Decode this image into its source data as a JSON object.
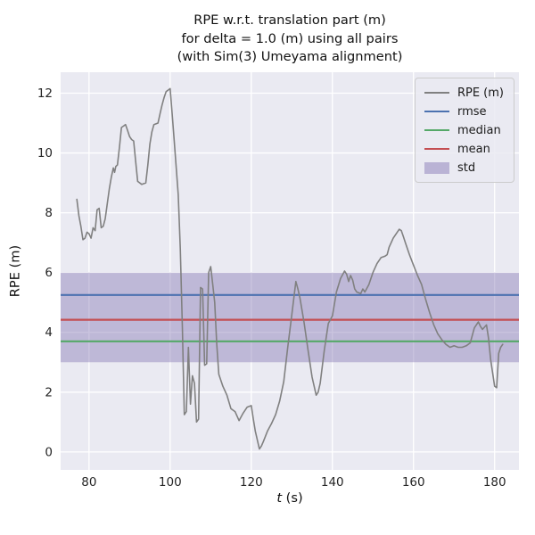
{
  "title": {
    "line1": "RPE w.r.t. translation part (m)",
    "line2": "for delta = 1.0 (m) using all pairs",
    "line3": "(with Sim(3) Umeyama alignment)"
  },
  "axes": {
    "xlabel_var": "t",
    "xlabel_rest": " (s)",
    "ylabel": "RPE (m)"
  },
  "colors": {
    "figure_bg": "#ffffff",
    "axes_bg": "#eaeaf2",
    "grid": "#ffffff",
    "text": "#262626"
  },
  "chart_data": {
    "type": "line",
    "title": "RPE w.r.t. translation part (m) for delta = 1.0 (m) using all pairs (with Sim(3) Umeyama alignment)",
    "xlabel": "t (s)",
    "ylabel": "RPE (m)",
    "xlim": [
      73,
      186
    ],
    "ylim": [
      -0.6,
      12.7
    ],
    "xticks": [
      80,
      100,
      120,
      140,
      160,
      180
    ],
    "yticks": [
      0,
      2,
      4,
      6,
      8,
      10,
      12
    ],
    "grid": true,
    "legend_position": "upper right",
    "series": [
      {
        "name": "RPE (m)",
        "color": "#808080",
        "points": [
          [
            77,
            8.45
          ],
          [
            77.5,
            7.9
          ],
          [
            78,
            7.55
          ],
          [
            78.5,
            7.1
          ],
          [
            79,
            7.15
          ],
          [
            79.5,
            7.35
          ],
          [
            80,
            7.3
          ],
          [
            80.5,
            7.15
          ],
          [
            81,
            7.5
          ],
          [
            81.5,
            7.4
          ],
          [
            82,
            8.1
          ],
          [
            82.5,
            8.15
          ],
          [
            83,
            7.5
          ],
          [
            83.5,
            7.55
          ],
          [
            84,
            7.8
          ],
          [
            84.5,
            8.3
          ],
          [
            85,
            8.8
          ],
          [
            85.5,
            9.2
          ],
          [
            86,
            9.5
          ],
          [
            86.3,
            9.35
          ],
          [
            86.6,
            9.55
          ],
          [
            87,
            9.6
          ],
          [
            87.5,
            10.2
          ],
          [
            88,
            10.85
          ],
          [
            88.5,
            10.9
          ],
          [
            89,
            10.95
          ],
          [
            89.5,
            10.75
          ],
          [
            90,
            10.55
          ],
          [
            90.5,
            10.45
          ],
          [
            91,
            10.4
          ],
          [
            91.5,
            9.7
          ],
          [
            92,
            9.05
          ],
          [
            93,
            8.95
          ],
          [
            94,
            9.0
          ],
          [
            94.5,
            9.6
          ],
          [
            95,
            10.3
          ],
          [
            95.5,
            10.7
          ],
          [
            96,
            10.95
          ],
          [
            97,
            11.0
          ],
          [
            97.5,
            11.3
          ],
          [
            98,
            11.6
          ],
          [
            98.5,
            11.85
          ],
          [
            99,
            12.05
          ],
          [
            99.5,
            12.1
          ],
          [
            100,
            12.15
          ],
          [
            100.5,
            11.3
          ],
          [
            101,
            10.4
          ],
          [
            102,
            8.6
          ],
          [
            102.5,
            6.8
          ],
          [
            103,
            4.2
          ],
          [
            103.5,
            1.25
          ],
          [
            104,
            1.35
          ],
          [
            104.5,
            3.5
          ],
          [
            105,
            1.6
          ],
          [
            105.5,
            2.55
          ],
          [
            106,
            2.3
          ],
          [
            106.5,
            1.0
          ],
          [
            107,
            1.1
          ],
          [
            107.5,
            5.5
          ],
          [
            108,
            5.45
          ],
          [
            108.5,
            2.9
          ],
          [
            109,
            2.95
          ],
          [
            109.5,
            6.0
          ],
          [
            110,
            6.2
          ],
          [
            110.5,
            5.6
          ],
          [
            111,
            5.0
          ],
          [
            111.5,
            3.6
          ],
          [
            112,
            2.6
          ],
          [
            113,
            2.2
          ],
          [
            114,
            1.9
          ],
          [
            115,
            1.45
          ],
          [
            116,
            1.35
          ],
          [
            117,
            1.05
          ],
          [
            118,
            1.3
          ],
          [
            119,
            1.5
          ],
          [
            120,
            1.55
          ],
          [
            120.5,
            1.1
          ],
          [
            121,
            0.7
          ],
          [
            122,
            0.1
          ],
          [
            122.5,
            0.2
          ],
          [
            123,
            0.35
          ],
          [
            124,
            0.7
          ],
          [
            125,
            0.95
          ],
          [
            126,
            1.25
          ],
          [
            127,
            1.7
          ],
          [
            128,
            2.35
          ],
          [
            129,
            3.5
          ],
          [
            130,
            4.6
          ],
          [
            131,
            5.7
          ],
          [
            131.5,
            5.45
          ],
          [
            132,
            5.15
          ],
          [
            133,
            4.35
          ],
          [
            134,
            3.4
          ],
          [
            135,
            2.5
          ],
          [
            136,
            1.9
          ],
          [
            136.5,
            2.0
          ],
          [
            137,
            2.3
          ],
          [
            138,
            3.4
          ],
          [
            139,
            4.3
          ],
          [
            140,
            4.55
          ],
          [
            141,
            5.35
          ],
          [
            142,
            5.8
          ],
          [
            143,
            6.05
          ],
          [
            143.5,
            5.95
          ],
          [
            144,
            5.7
          ],
          [
            144.5,
            5.9
          ],
          [
            145,
            5.75
          ],
          [
            145.5,
            5.45
          ],
          [
            146,
            5.35
          ],
          [
            147,
            5.3
          ],
          [
            147.5,
            5.45
          ],
          [
            148,
            5.35
          ],
          [
            149,
            5.6
          ],
          [
            150,
            6.0
          ],
          [
            151,
            6.3
          ],
          [
            152,
            6.5
          ],
          [
            153,
            6.55
          ],
          [
            153.5,
            6.6
          ],
          [
            154,
            6.85
          ],
          [
            155,
            7.15
          ],
          [
            156,
            7.35
          ],
          [
            156.5,
            7.45
          ],
          [
            157,
            7.4
          ],
          [
            157.5,
            7.2
          ],
          [
            158,
            7.0
          ],
          [
            159,
            6.6
          ],
          [
            160,
            6.25
          ],
          [
            161,
            5.9
          ],
          [
            162,
            5.6
          ],
          [
            163,
            5.1
          ],
          [
            164,
            4.65
          ],
          [
            165,
            4.25
          ],
          [
            166,
            3.95
          ],
          [
            167,
            3.75
          ],
          [
            168,
            3.6
          ],
          [
            169,
            3.5
          ],
          [
            170,
            3.55
          ],
          [
            171,
            3.5
          ],
          [
            172,
            3.5
          ],
          [
            173,
            3.55
          ],
          [
            174,
            3.65
          ],
          [
            174.5,
            3.9
          ],
          [
            175,
            4.15
          ],
          [
            176,
            4.35
          ],
          [
            176.5,
            4.2
          ],
          [
            177,
            4.1
          ],
          [
            178,
            4.25
          ],
          [
            178.5,
            3.8
          ],
          [
            179,
            3.1
          ],
          [
            180,
            2.2
          ],
          [
            180.5,
            2.15
          ],
          [
            181,
            3.3
          ],
          [
            181.5,
            3.5
          ],
          [
            182,
            3.6
          ]
        ]
      }
    ],
    "hlines": [
      {
        "name": "rmse",
        "value": 5.25,
        "color": "#4c72b0"
      },
      {
        "name": "mean",
        "value": 4.42,
        "color": "#c44e52"
      },
      {
        "name": "median",
        "value": 3.7,
        "color": "#55a868"
      }
    ],
    "band": {
      "name": "std",
      "ymin": 3.0,
      "ymax": 6.0,
      "fill": "rgba(129,114,178,0.42)"
    },
    "legend": [
      {
        "label": "RPE (m)",
        "type": "line",
        "color": "#808080"
      },
      {
        "label": "rmse",
        "type": "line",
        "color": "#4c72b0"
      },
      {
        "label": "median",
        "type": "line",
        "color": "#55a868"
      },
      {
        "label": "mean",
        "type": "line",
        "color": "#c44e52"
      },
      {
        "label": "std",
        "type": "patch",
        "color": "rgba(129,114,178,0.45)"
      }
    ]
  }
}
